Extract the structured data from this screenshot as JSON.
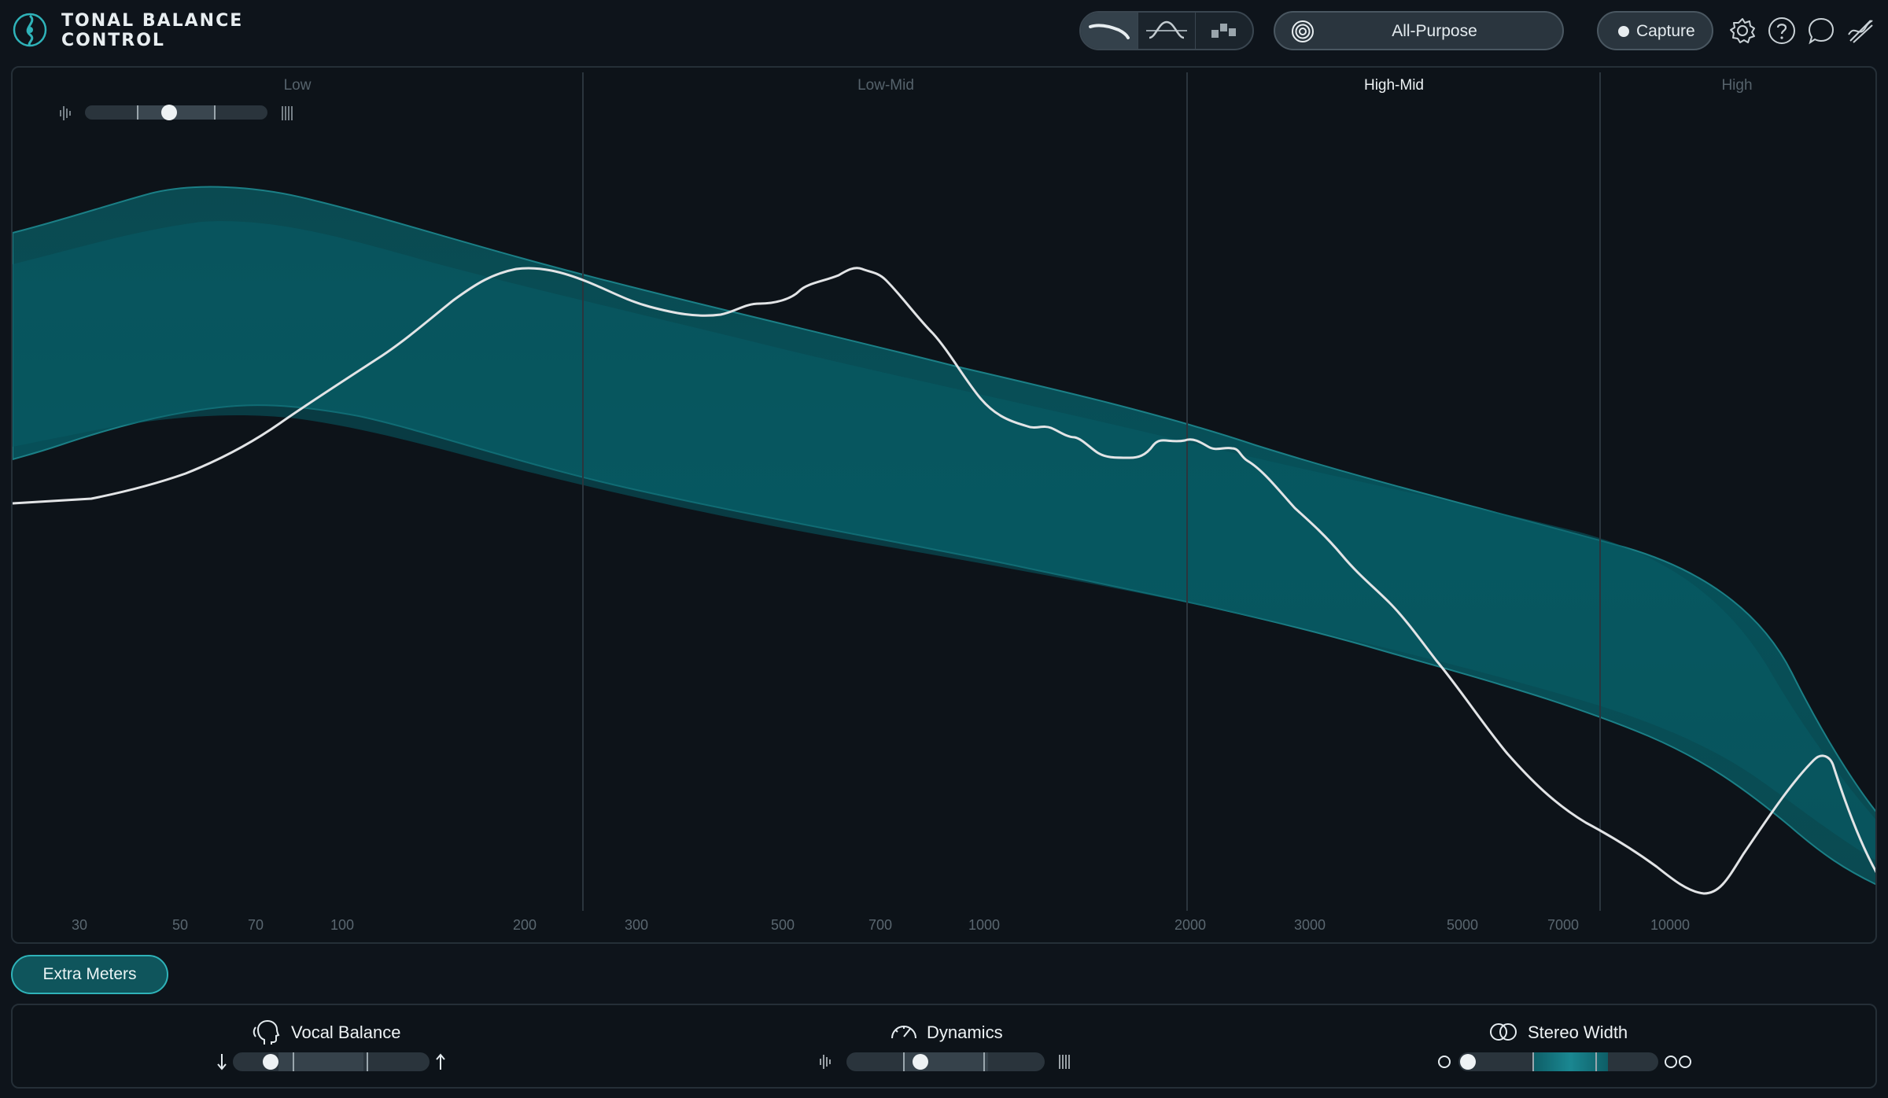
{
  "app": {
    "title": "TONAL BALANCE\nCONTROL",
    "logo_icon": "tonal-balance-logo"
  },
  "header": {
    "view_modes": [
      {
        "name": "broad-view",
        "icon": "broad-curve-icon",
        "active": true
      },
      {
        "name": "fine-view",
        "icon": "fine-curve-icon",
        "active": false
      },
      {
        "name": "bars-view",
        "icon": "bars-icon",
        "active": false
      }
    ],
    "target": {
      "icon": "target-icon",
      "label": "All-Purpose"
    },
    "capture": {
      "label": "Capture"
    },
    "icons": [
      "gear-icon",
      "help-icon",
      "chat-icon",
      "routing-icon"
    ]
  },
  "bands": [
    {
      "label": "Low",
      "active": false
    },
    {
      "label": "Low-Mid",
      "active": false
    },
    {
      "label": "High-Mid",
      "active": true
    },
    {
      "label": "High",
      "active": false
    }
  ],
  "frequency_ticks": [
    "30",
    "50",
    "70",
    "100",
    "200",
    "300",
    "500",
    "700",
    "1000",
    "2000",
    "3000",
    "5000",
    "7000",
    "10000"
  ],
  "zoom_slider": {
    "value": 0.46
  },
  "colors": {
    "accent": "#2fb3b9",
    "band_fill": "#0a5a62",
    "curve": "#e2e4e6",
    "background": "#0d1319"
  },
  "extra_meters": {
    "label": "Extra Meters"
  },
  "meters": {
    "vocal_balance": {
      "label": "Vocal Balance",
      "icon": "vocal-head-icon",
      "value": 0.2
    },
    "dynamics": {
      "label": "Dynamics",
      "icon": "gauge-icon",
      "value": 0.37
    },
    "stereo_width": {
      "label": "Stereo Width",
      "icon": "stereo-circles-icon",
      "value": 0.12
    }
  }
}
